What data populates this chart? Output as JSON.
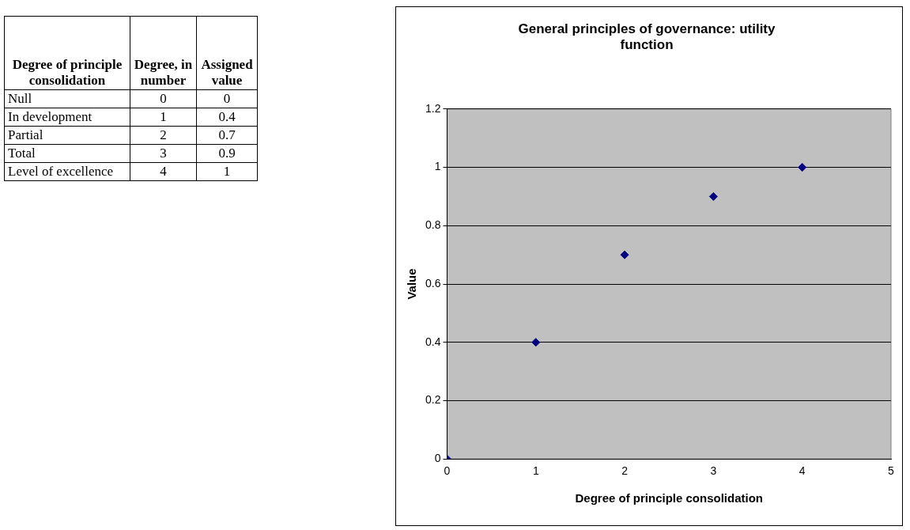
{
  "chart_data": [
    {
      "type": "other",
      "xlabel": "Degree of principle consolidation",
      "categories": [
        "Null",
        "In development",
        "Partial",
        "Total",
        "Level of excellence"
      ],
      "data_labels": true,
      "series": [
        {
          "name": "Degree, in number",
          "values": [
            0,
            1,
            2,
            3,
            4
          ]
        },
        {
          "name": "Assigned value",
          "values": [
            0,
            0.4,
            0.7,
            0.9,
            1
          ]
        }
      ]
    },
    {
      "type": "scatter",
      "title": "General principles of governance: utility function",
      "xlabel": "Degree of principle consolidation",
      "ylabel": "Value",
      "x": [
        0,
        1,
        2,
        3,
        4
      ],
      "values": [
        0,
        0.4,
        0.7,
        0.9,
        1
      ],
      "color": "#000080",
      "marker": "diamond",
      "xlim": [
        0,
        5
      ],
      "xticks": [
        0,
        1,
        2,
        3,
        4,
        5
      ],
      "ylim": [
        0,
        1.2
      ],
      "yticks": [
        0,
        0.2,
        0.4,
        0.6,
        0.8,
        1,
        1.2
      ],
      "grid": "y",
      "legend": false
    }
  ]
}
